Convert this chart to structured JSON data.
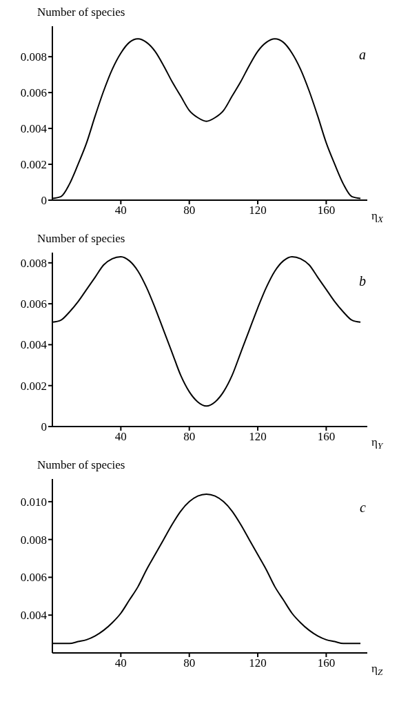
{
  "chart_data": [
    {
      "type": "line",
      "ylabel": "Number of species",
      "xlabel": "η$_{X}$",
      "annotations": [
        "a"
      ],
      "x": [
        0,
        5,
        10,
        15,
        20,
        25,
        30,
        35,
        40,
        45,
        50,
        55,
        60,
        65,
        70,
        75,
        80,
        85,
        90,
        95,
        100,
        105,
        110,
        115,
        120,
        125,
        130,
        135,
        140,
        145,
        150,
        155,
        160,
        165,
        170,
        175,
        180
      ],
      "series": [
        {
          "color": "#000000",
          "values": [
            0.0001,
            0.0002,
            0.0009,
            0.002,
            0.0032,
            0.0047,
            0.0061,
            0.0073,
            0.0082,
            0.0088,
            0.009,
            0.0088,
            0.0083,
            0.0075,
            0.0066,
            0.0058,
            0.005,
            0.0046,
            0.0044,
            0.0046,
            0.005,
            0.0058,
            0.0066,
            0.0075,
            0.0083,
            0.0088,
            0.009,
            0.0088,
            0.0082,
            0.0073,
            0.0061,
            0.0047,
            0.0032,
            0.002,
            0.0009,
            0.0002,
            0.0001
          ]
        }
      ],
      "xlim": [
        0,
        184
      ],
      "xticks": [
        40,
        80,
        120,
        160
      ],
      "ylim": [
        0,
        0.0097
      ],
      "yticks": [
        0,
        0.002,
        0.004,
        0.006,
        0.008
      ]
    },
    {
      "type": "line",
      "ylabel": "Number of species",
      "xlabel": "η$_{Y}$",
      "annotations": [
        "b"
      ],
      "x": [
        0,
        5,
        10,
        15,
        20,
        25,
        30,
        35,
        40,
        45,
        50,
        55,
        60,
        65,
        70,
        75,
        80,
        85,
        90,
        95,
        100,
        105,
        110,
        115,
        120,
        125,
        130,
        135,
        140,
        145,
        150,
        155,
        160,
        165,
        170,
        175,
        180
      ],
      "series": [
        {
          "color": "#000000",
          "values": [
            0.0051,
            0.0052,
            0.0056,
            0.0061,
            0.0067,
            0.0073,
            0.0079,
            0.0082,
            0.0083,
            0.0081,
            0.0076,
            0.0068,
            0.0058,
            0.0047,
            0.0036,
            0.0025,
            0.0017,
            0.0012,
            0.001,
            0.0012,
            0.0017,
            0.0025,
            0.0036,
            0.0047,
            0.0058,
            0.0068,
            0.0076,
            0.0081,
            0.0083,
            0.0082,
            0.0079,
            0.0073,
            0.0067,
            0.0061,
            0.0056,
            0.0052,
            0.0051
          ]
        }
      ],
      "xlim": [
        0,
        184
      ],
      "xticks": [
        40,
        80,
        120,
        160
      ],
      "ylim": [
        0,
        0.0085
      ],
      "yticks": [
        0,
        0.002,
        0.004,
        0.006,
        0.008
      ]
    },
    {
      "type": "line",
      "ylabel": "Number of species",
      "xlabel": "η$_{Z}$",
      "annotations": [
        "c"
      ],
      "x": [
        0,
        5,
        10,
        15,
        20,
        25,
        30,
        35,
        40,
        45,
        50,
        55,
        60,
        65,
        70,
        75,
        80,
        85,
        90,
        95,
        100,
        105,
        110,
        115,
        120,
        125,
        130,
        135,
        140,
        145,
        150,
        155,
        160,
        165,
        170,
        175,
        180
      ],
      "series": [
        {
          "color": "#000000",
          "values": [
            0.0025,
            0.0025,
            0.0025,
            0.0026,
            0.0027,
            0.0029,
            0.0032,
            0.0036,
            0.0041,
            0.0048,
            0.0055,
            0.0064,
            0.0072,
            0.008,
            0.0088,
            0.0095,
            0.01,
            0.0103,
            0.0104,
            0.0103,
            0.01,
            0.0095,
            0.0088,
            0.008,
            0.0072,
            0.0064,
            0.0055,
            0.0048,
            0.0041,
            0.0036,
            0.0032,
            0.0029,
            0.0027,
            0.0026,
            0.0025,
            0.0025,
            0.0025
          ]
        }
      ],
      "xlim": [
        0,
        184
      ],
      "xticks": [
        40,
        80,
        120,
        160
      ],
      "ylim": [
        0.002,
        0.0112
      ],
      "yticks": [
        0.004,
        0.006,
        0.008,
        {
          "value": 0.01,
          "label": "0.010"
        }
      ]
    }
  ]
}
